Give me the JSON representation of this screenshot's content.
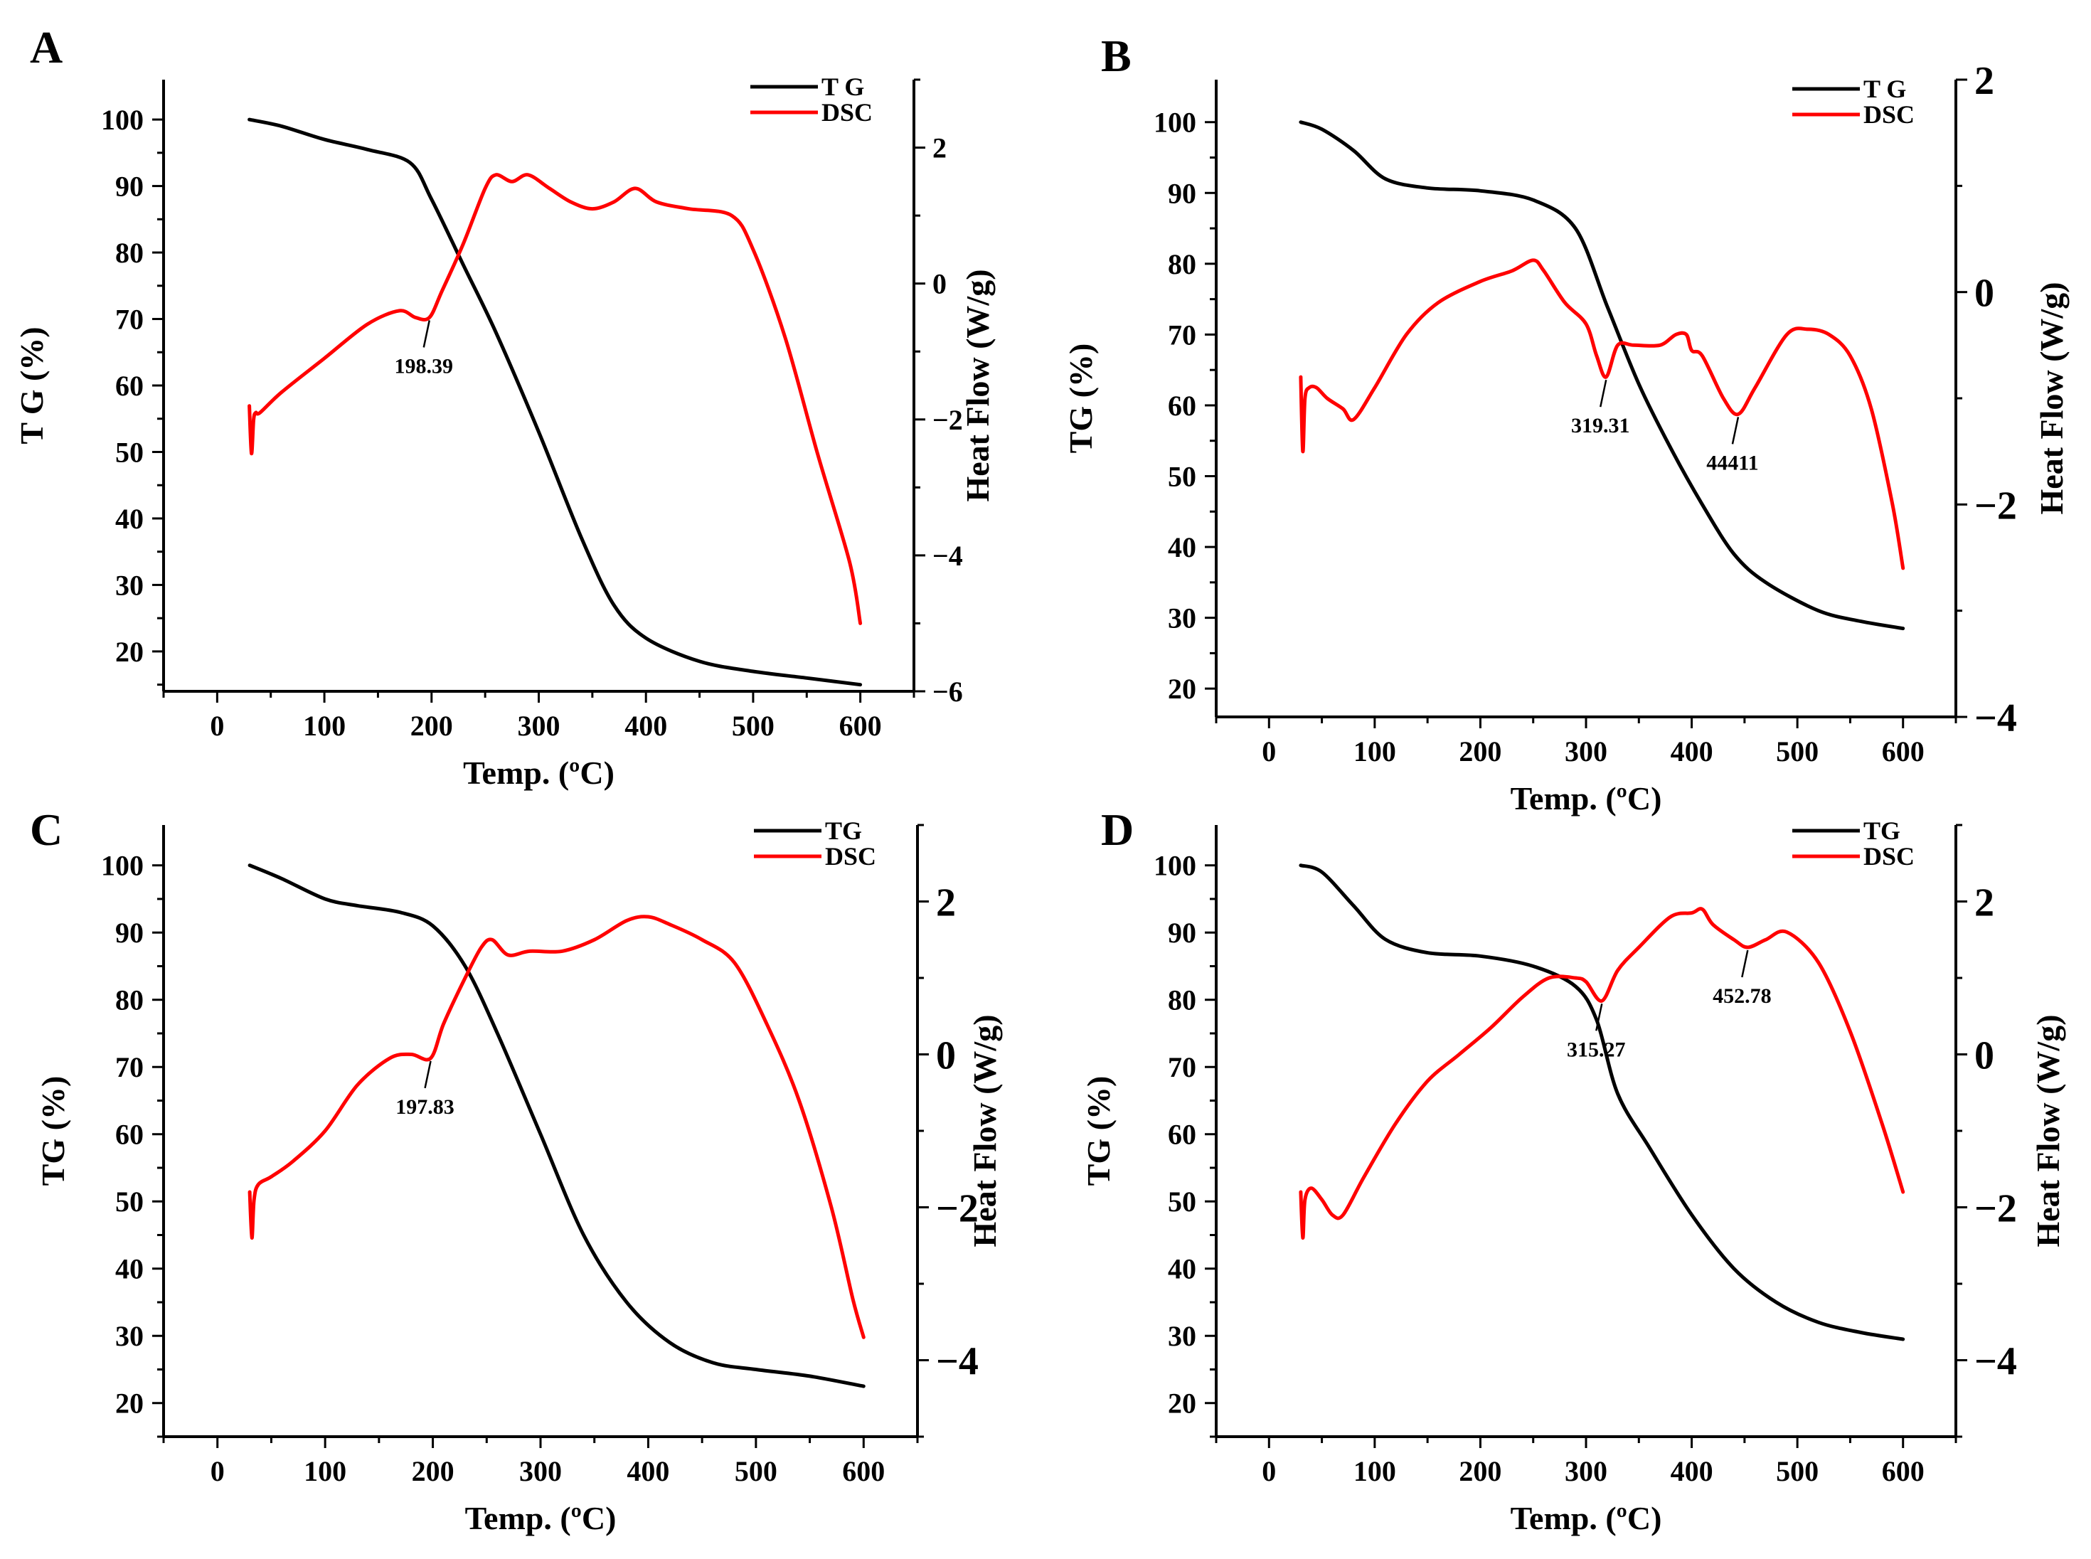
{
  "chart_data": [
    {
      "panel": "A",
      "type": "line",
      "xlabel": "Temp. (ºC)",
      "ylabel_left": "T G (%)",
      "ylabel_right": "Heat Flow (W/g)",
      "x_ticks": [
        0,
        100,
        200,
        300,
        400,
        500,
        600
      ],
      "y_left_ticks": [
        20,
        30,
        40,
        50,
        60,
        70,
        80,
        90,
        100
      ],
      "y_right_ticks": [
        2,
        0,
        -2,
        -4,
        -6
      ],
      "y_right_tick_labels": [
        "2",
        "0",
        "−2",
        "−4",
        "−6"
      ],
      "xlim": [
        -50,
        650
      ],
      "y_left_lim": [
        14,
        106
      ],
      "y_right_lim": [
        -6,
        3
      ],
      "legend": [
        "T G",
        "DSC"
      ],
      "series": [
        {
          "name": "TG",
          "axis": "left",
          "color": "#000000",
          "x": [
            30,
            60,
            100,
            140,
            180,
            200,
            230,
            260,
            300,
            340,
            370,
            400,
            450,
            500,
            550,
            600
          ],
          "y": [
            100,
            99,
            97,
            95.5,
            93.5,
            88,
            78,
            68,
            53,
            37,
            27,
            22,
            18.5,
            17,
            16,
            15
          ]
        },
        {
          "name": "DSC",
          "axis": "right",
          "color": "#ff0000",
          "x": [
            30,
            32,
            34,
            36,
            40,
            60,
            100,
            140,
            170,
            185,
            198,
            210,
            230,
            250,
            260,
            275,
            290,
            310,
            330,
            350,
            370,
            390,
            410,
            440,
            480,
            500,
            530,
            560,
            590,
            600
          ],
          "y": [
            -1.8,
            -2.5,
            -2.0,
            -1.9,
            -1.9,
            -1.6,
            -1.1,
            -0.6,
            -0.4,
            -0.5,
            -0.5,
            -0.1,
            0.6,
            1.4,
            1.6,
            1.5,
            1.6,
            1.4,
            1.2,
            1.1,
            1.2,
            1.4,
            1.2,
            1.1,
            1.0,
            0.5,
            -0.8,
            -2.5,
            -4.1,
            -5.0
          ]
        }
      ],
      "annotations": [
        {
          "text": "198.39",
          "x": 198,
          "y": -0.5
        }
      ]
    },
    {
      "panel": "B",
      "type": "line",
      "xlabel": "Temp. (ºC)",
      "ylabel_left": "TG (%)",
      "ylabel_right": "Heat Flow (W/g)",
      "x_ticks": [
        0,
        100,
        200,
        300,
        400,
        500,
        600
      ],
      "y_left_ticks": [
        20,
        30,
        40,
        50,
        60,
        70,
        80,
        90,
        100
      ],
      "y_right_ticks": [
        2,
        0,
        -2,
        -4
      ],
      "y_right_tick_labels": [
        "2",
        "0",
        "−2",
        "−4"
      ],
      "xlim": [
        -50,
        650
      ],
      "y_left_lim": [
        16,
        106
      ],
      "y_right_lim": [
        -4,
        2
      ],
      "legend": [
        "T G",
        "DSC"
      ],
      "series": [
        {
          "name": "TG",
          "axis": "left",
          "color": "#000000",
          "x": [
            30,
            50,
            80,
            110,
            150,
            200,
            250,
            290,
            320,
            350,
            380,
            410,
            440,
            470,
            520,
            560,
            600
          ],
          "y": [
            100,
            99,
            96,
            92,
            90.7,
            90.3,
            89,
            85,
            74,
            63,
            54,
            46,
            39,
            35,
            31,
            29.5,
            28.5
          ]
        },
        {
          "name": "DSC",
          "axis": "right",
          "color": "#ff0000",
          "x": [
            30,
            32,
            34,
            38,
            45,
            55,
            70,
            80,
            100,
            130,
            160,
            200,
            230,
            250,
            260,
            280,
            300,
            310,
            319,
            330,
            345,
            370,
            385,
            395,
            400,
            410,
            430,
            444,
            460,
            490,
            510,
            530,
            550,
            570,
            590,
            600
          ],
          "y": [
            -0.8,
            -1.5,
            -1.0,
            -0.9,
            -0.9,
            -1.0,
            -1.1,
            -1.2,
            -0.9,
            -0.4,
            -0.1,
            0.1,
            0.2,
            0.3,
            0.2,
            -0.1,
            -0.3,
            -0.6,
            -0.8,
            -0.5,
            -0.5,
            -0.5,
            -0.4,
            -0.4,
            -0.55,
            -0.6,
            -1.0,
            -1.15,
            -0.9,
            -0.4,
            -0.35,
            -0.4,
            -0.6,
            -1.1,
            -2.0,
            -2.6
          ]
        }
      ],
      "annotations": [
        {
          "text": "319.31",
          "x": 319,
          "y": -0.8
        },
        {
          "text": "44411",
          "x": 444,
          "y": -1.15
        }
      ]
    },
    {
      "panel": "C",
      "type": "line",
      "xlabel": "Temp. (ºC)",
      "ylabel_left": "TG (%)",
      "ylabel_right": "Heat Flow (W/g)",
      "x_ticks": [
        0,
        100,
        200,
        300,
        400,
        500,
        600
      ],
      "y_left_ticks": [
        20,
        30,
        40,
        50,
        60,
        70,
        80,
        90,
        100
      ],
      "y_right_ticks": [
        2,
        0,
        -2,
        -4
      ],
      "y_right_tick_labels": [
        "2",
        "0",
        "−2",
        "−4"
      ],
      "xlim": [
        -50,
        650
      ],
      "y_left_lim": [
        15,
        106
      ],
      "y_right_lim": [
        -5,
        3
      ],
      "legend": [
        "TG",
        "DSC"
      ],
      "series": [
        {
          "name": "TG",
          "axis": "left",
          "color": "#000000",
          "x": [
            30,
            60,
            100,
            130,
            170,
            200,
            230,
            260,
            300,
            340,
            380,
            420,
            460,
            500,
            550,
            600
          ],
          "y": [
            100,
            98,
            95,
            94,
            93,
            91,
            85,
            75,
            60,
            45,
            35,
            29,
            26,
            25,
            24,
            22.5
          ]
        },
        {
          "name": "DSC",
          "axis": "right",
          "color": "#ff0000",
          "x": [
            30,
            32,
            34,
            38,
            50,
            70,
            100,
            130,
            160,
            180,
            198,
            210,
            230,
            245,
            255,
            270,
            290,
            320,
            350,
            380,
            400,
            420,
            450,
            480,
            510,
            540,
            570,
            590,
            600
          ],
          "y": [
            -1.8,
            -2.4,
            -1.9,
            -1.7,
            -1.6,
            -1.4,
            -1.0,
            -0.4,
            -0.05,
            0.0,
            -0.05,
            0.4,
            1.0,
            1.4,
            1.5,
            1.3,
            1.35,
            1.35,
            1.5,
            1.75,
            1.8,
            1.7,
            1.5,
            1.2,
            0.4,
            -0.6,
            -2.0,
            -3.2,
            -3.7
          ]
        }
      ],
      "annotations": [
        {
          "text": "197.83",
          "x": 198,
          "y": -0.05
        }
      ]
    },
    {
      "panel": "D",
      "type": "line",
      "xlabel": "Temp. (ºC)",
      "ylabel_left": "TG (%)",
      "ylabel_right": "Heat Flow (W/g)",
      "x_ticks": [
        0,
        100,
        200,
        300,
        400,
        500,
        600
      ],
      "y_left_ticks": [
        20,
        30,
        40,
        50,
        60,
        70,
        80,
        90,
        100
      ],
      "y_right_ticks": [
        2,
        0,
        -2,
        -4
      ],
      "y_right_tick_labels": [
        "2",
        "0",
        "−2",
        "−4"
      ],
      "xlim": [
        -50,
        650
      ],
      "y_left_lim": [
        15,
        106
      ],
      "y_right_lim": [
        -5,
        3
      ],
      "legend": [
        "TG",
        "DSC"
      ],
      "series": [
        {
          "name": "TG",
          "axis": "left",
          "color": "#000000",
          "x": [
            30,
            50,
            80,
            110,
            150,
            200,
            250,
            290,
            310,
            330,
            360,
            400,
            440,
            480,
            520,
            560,
            600
          ],
          "y": [
            100,
            99,
            94,
            89,
            87,
            86.5,
            85,
            82,
            77,
            66,
            58,
            48,
            40,
            35,
            32,
            30.5,
            29.5
          ]
        },
        {
          "name": "DSC",
          "axis": "right",
          "color": "#ff0000",
          "x": [
            30,
            32,
            34,
            40,
            50,
            60,
            70,
            90,
            120,
            150,
            180,
            210,
            240,
            265,
            290,
            300,
            315,
            330,
            350,
            380,
            400,
            410,
            420,
            440,
            453,
            470,
            490,
            520,
            550,
            580,
            600
          ],
          "y": [
            -1.8,
            -2.4,
            -1.9,
            -1.75,
            -1.9,
            -2.1,
            -2.1,
            -1.6,
            -0.9,
            -0.35,
            0.0,
            0.35,
            0.75,
            1.0,
            1.0,
            0.95,
            0.7,
            1.1,
            1.4,
            1.8,
            1.85,
            1.9,
            1.7,
            1.5,
            1.4,
            1.5,
            1.6,
            1.2,
            0.3,
            -0.9,
            -1.8
          ]
        }
      ],
      "annotations": [
        {
          "text": "315.27",
          "x": 315,
          "y": 0.7
        },
        {
          "text": "452.78",
          "x": 453,
          "y": 1.4
        }
      ]
    }
  ]
}
